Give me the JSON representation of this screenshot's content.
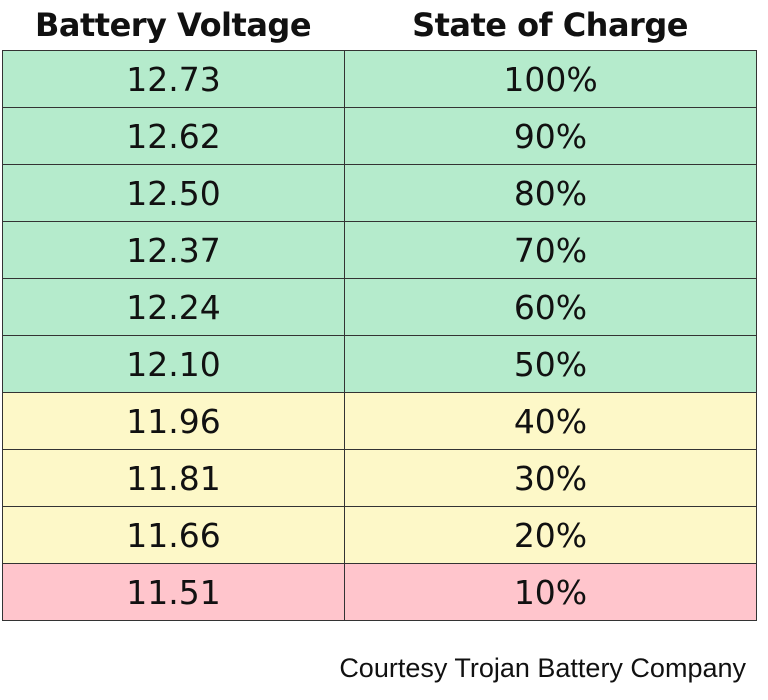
{
  "table": {
    "headers": [
      "Battery Voltage",
      "State of Charge"
    ],
    "rows": [
      {
        "voltage": "12.73",
        "charge": "100%",
        "zone": "green"
      },
      {
        "voltage": "12.62",
        "charge": "90%",
        "zone": "green"
      },
      {
        "voltage": "12.50",
        "charge": "80%",
        "zone": "green"
      },
      {
        "voltage": "12.37",
        "charge": "70%",
        "zone": "green"
      },
      {
        "voltage": "12.24",
        "charge": "60%",
        "zone": "green"
      },
      {
        "voltage": "12.10",
        "charge": "50%",
        "zone": "green"
      },
      {
        "voltage": "11.96",
        "charge": "40%",
        "zone": "yellow"
      },
      {
        "voltage": "11.81",
        "charge": "30%",
        "zone": "yellow"
      },
      {
        "voltage": "11.66",
        "charge": "20%",
        "zone": "yellow"
      },
      {
        "voltage": "11.51",
        "charge": "10%",
        "zone": "red"
      }
    ]
  },
  "zone_colors": {
    "green": "#b5ebcc",
    "yellow": "#fdf8c8",
    "red": "#ffc5cc"
  },
  "credit": "Courtesy Trojan Battery Company"
}
